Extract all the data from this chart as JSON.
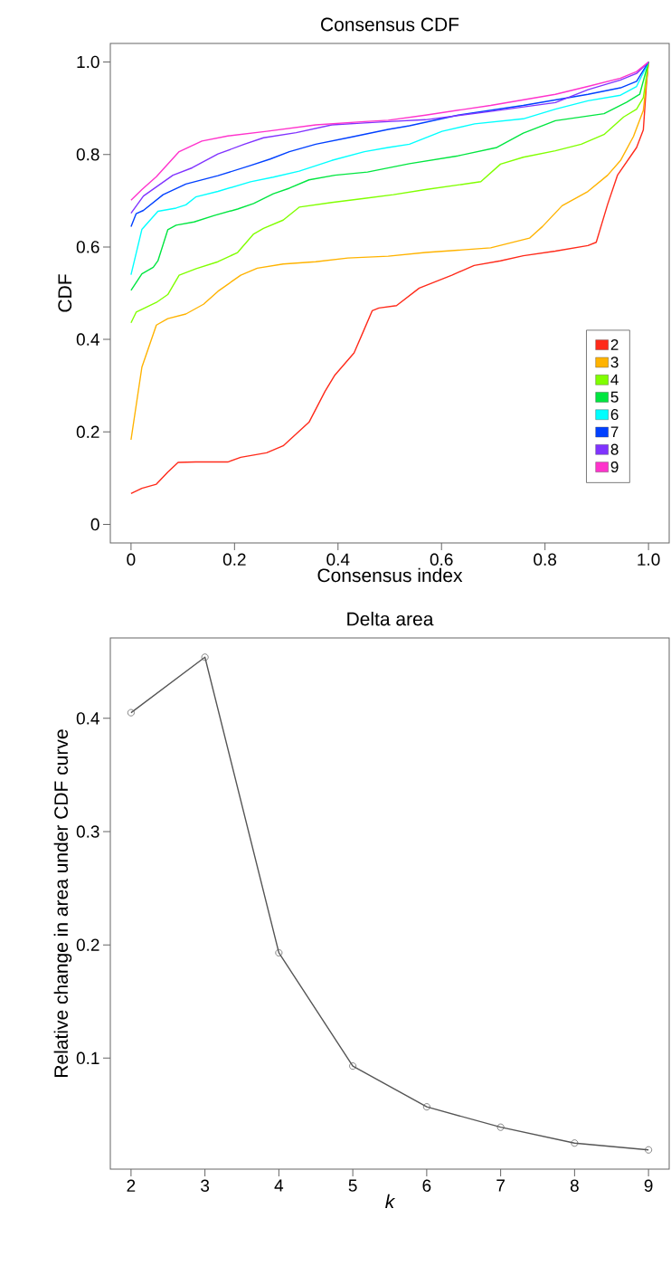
{
  "chart_data": [
    {
      "type": "line",
      "title": "Consensus CDF",
      "xlabel": "Consensus index",
      "ylabel": "CDF",
      "xlim": [
        -0.04,
        1.04
      ],
      "ylim": [
        -0.04,
        1.04
      ],
      "xticks": [
        0,
        0.2,
        0.4,
        0.6,
        0.8,
        {
          "value": 1,
          "label": "1.0"
        }
      ],
      "yticks": [
        0,
        0.2,
        0.4,
        0.6,
        0.8,
        {
          "value": 1,
          "label": "1.0"
        }
      ],
      "legend": "right",
      "grid": false,
      "line_style": "solid",
      "series": [
        {
          "name": "2",
          "color": "#ff2a1a",
          "x": [
            0.0,
            0.021,
            0.049,
            0.071,
            0.091,
            0.125,
            0.187,
            0.212,
            0.262,
            0.294,
            0.344,
            0.375,
            0.394,
            0.431,
            0.45,
            0.466,
            0.479,
            0.513,
            0.557,
            0.62,
            0.663,
            0.714,
            0.758,
            0.82,
            0.883,
            0.899,
            0.921,
            0.94,
            0.977,
            0.99,
            0.996,
            1.0
          ],
          "values": [
            0.067,
            0.078,
            0.087,
            0.113,
            0.134,
            0.135,
            0.135,
            0.145,
            0.155,
            0.17,
            0.221,
            0.288,
            0.323,
            0.371,
            0.42,
            0.462,
            0.468,
            0.473,
            0.511,
            0.539,
            0.56,
            0.57,
            0.581,
            0.591,
            0.603,
            0.61,
            0.692,
            0.755,
            0.815,
            0.853,
            0.951,
            1.0
          ]
        },
        {
          "name": "3",
          "color": "#ffb300",
          "x": [
            0.0,
            0.021,
            0.049,
            0.071,
            0.106,
            0.14,
            0.168,
            0.212,
            0.244,
            0.294,
            0.357,
            0.419,
            0.497,
            0.569,
            0.695,
            0.77,
            0.795,
            0.833,
            0.883,
            0.921,
            0.946,
            0.971,
            0.99,
            1.0
          ],
          "values": [
            0.183,
            0.34,
            0.431,
            0.445,
            0.455,
            0.476,
            0.504,
            0.539,
            0.554,
            0.563,
            0.568,
            0.576,
            0.58,
            0.588,
            0.598,
            0.619,
            0.644,
            0.689,
            0.72,
            0.755,
            0.787,
            0.839,
            0.895,
            1.0
          ]
        },
        {
          "name": "4",
          "color": "#80ff00",
          "x": [
            0.0,
            0.01,
            0.049,
            0.071,
            0.093,
            0.126,
            0.168,
            0.206,
            0.237,
            0.256,
            0.294,
            0.325,
            0.388,
            0.451,
            0.507,
            0.569,
            0.632,
            0.676,
            0.714,
            0.758,
            0.82,
            0.87,
            0.914,
            0.952,
            0.977,
            0.99,
            1.0
          ],
          "values": [
            0.436,
            0.459,
            0.48,
            0.497,
            0.539,
            0.553,
            0.568,
            0.588,
            0.628,
            0.64,
            0.658,
            0.686,
            0.696,
            0.705,
            0.713,
            0.724,
            0.734,
            0.741,
            0.779,
            0.794,
            0.808,
            0.822,
            0.843,
            0.881,
            0.898,
            0.923,
            1.0
          ]
        },
        {
          "name": "5",
          "color": "#00e640",
          "x": [
            0.0,
            0.021,
            0.043,
            0.052,
            0.071,
            0.087,
            0.122,
            0.161,
            0.206,
            0.237,
            0.275,
            0.306,
            0.344,
            0.394,
            0.457,
            0.538,
            0.632,
            0.707,
            0.758,
            0.82,
            0.914,
            0.958,
            0.983,
            1.0
          ],
          "values": [
            0.506,
            0.542,
            0.556,
            0.57,
            0.637,
            0.647,
            0.654,
            0.668,
            0.682,
            0.694,
            0.715,
            0.727,
            0.745,
            0.755,
            0.762,
            0.78,
            0.797,
            0.815,
            0.846,
            0.873,
            0.888,
            0.913,
            0.93,
            1.0
          ]
        },
        {
          "name": "6",
          "color": "#00ffff",
          "x": [
            0.0,
            0.021,
            0.052,
            0.087,
            0.106,
            0.125,
            0.168,
            0.231,
            0.275,
            0.325,
            0.388,
            0.451,
            0.497,
            0.538,
            0.601,
            0.664,
            0.758,
            0.82,
            0.883,
            0.946,
            0.977,
            1.0
          ],
          "values": [
            0.54,
            0.638,
            0.677,
            0.684,
            0.691,
            0.708,
            0.72,
            0.741,
            0.751,
            0.764,
            0.787,
            0.806,
            0.815,
            0.822,
            0.85,
            0.866,
            0.877,
            0.898,
            0.916,
            0.928,
            0.947,
            1.0
          ]
        },
        {
          "name": "7",
          "color": "#0040ff",
          "x": [
            0.0,
            0.01,
            0.024,
            0.062,
            0.106,
            0.168,
            0.231,
            0.269,
            0.306,
            0.357,
            0.419,
            0.497,
            0.538,
            0.632,
            0.758,
            0.883,
            0.946,
            0.977,
            1.0
          ],
          "values": [
            0.644,
            0.672,
            0.679,
            0.713,
            0.736,
            0.754,
            0.776,
            0.79,
            0.806,
            0.822,
            0.836,
            0.854,
            0.862,
            0.885,
            0.906,
            0.93,
            0.944,
            0.958,
            1.0
          ]
        },
        {
          "name": "8",
          "color": "#8033ff",
          "x": [
            0.0,
            0.024,
            0.081,
            0.118,
            0.168,
            0.219,
            0.256,
            0.319,
            0.388,
            0.451,
            0.497,
            0.569,
            0.695,
            0.82,
            0.883,
            0.946,
            0.977,
            1.0
          ],
          "values": [
            0.673,
            0.71,
            0.755,
            0.771,
            0.801,
            0.822,
            0.836,
            0.847,
            0.864,
            0.868,
            0.871,
            0.875,
            0.893,
            0.912,
            0.94,
            0.961,
            0.975,
            1.0
          ]
        },
        {
          "name": "9",
          "color": "#ff33cc",
          "x": [
            0.0,
            0.021,
            0.049,
            0.093,
            0.137,
            0.187,
            0.262,
            0.357,
            0.451,
            0.497,
            0.569,
            0.695,
            0.82,
            0.883,
            0.946,
            0.977,
            1.0
          ],
          "values": [
            0.701,
            0.724,
            0.752,
            0.806,
            0.829,
            0.84,
            0.85,
            0.864,
            0.871,
            0.874,
            0.885,
            0.906,
            0.93,
            0.947,
            0.965,
            0.979,
            1.0
          ]
        }
      ]
    },
    {
      "type": "line",
      "title": "Delta area",
      "xlabel": "k",
      "ylabel": "Relative change in area under CDF curve",
      "xlim": [
        1.72,
        9.28
      ],
      "ylim": [
        0.002,
        0.471
      ],
      "xticks": [
        2,
        3,
        4,
        5,
        6,
        7,
        8,
        9
      ],
      "yticks": [
        0.1,
        0.2,
        0.3,
        0.4
      ],
      "grid": false,
      "marker": "circle",
      "line_style": "solid",
      "series": [
        {
          "color": "#555555",
          "x": [
            2,
            3,
            4,
            5,
            6,
            7,
            8,
            9
          ],
          "values": [
            0.405,
            0.454,
            0.193,
            0.093,
            0.057,
            0.039,
            0.025,
            0.019
          ]
        }
      ]
    }
  ]
}
